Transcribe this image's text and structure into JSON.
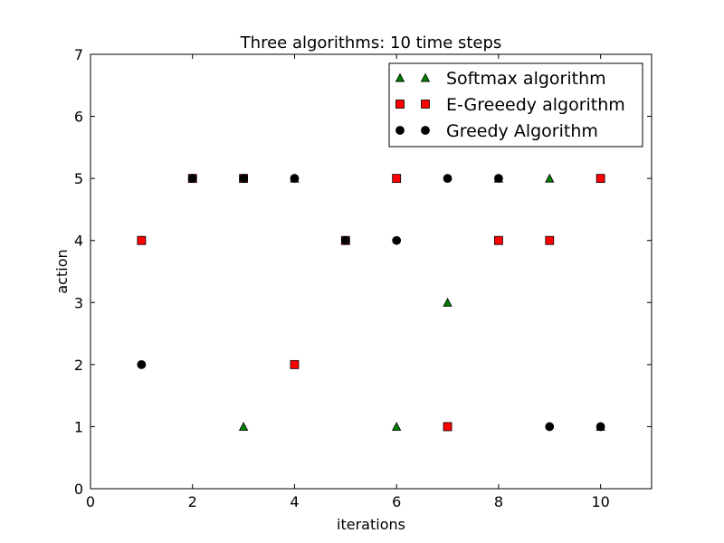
{
  "chart_data": {
    "type": "scatter",
    "title": "Three algorithms: 10 time steps",
    "xlabel": "iterations",
    "ylabel": "action",
    "xlim": [
      0,
      11
    ],
    "ylim": [
      0,
      7
    ],
    "xticks": [
      0,
      2,
      4,
      6,
      8,
      10
    ],
    "yticks": [
      0,
      1,
      2,
      3,
      4,
      5,
      6,
      7
    ],
    "grid": false,
    "legend_position": "top-right",
    "series": [
      {
        "name": "Softmax algorithm",
        "marker": "triangle",
        "color": "#008000",
        "points": [
          [
            1,
            4
          ],
          [
            2,
            5
          ],
          [
            3,
            1
          ],
          [
            4,
            5
          ],
          [
            5,
            4
          ],
          [
            6,
            1
          ],
          [
            7,
            3
          ],
          [
            8,
            5
          ],
          [
            9,
            5
          ],
          [
            10,
            1
          ]
        ]
      },
      {
        "name": "E-Greeedy algorithm",
        "marker": "square",
        "color": "#ff0000",
        "points": [
          [
            1,
            4
          ],
          [
            2,
            5
          ],
          [
            3,
            5
          ],
          [
            4,
            2
          ],
          [
            5,
            4
          ],
          [
            6,
            5
          ],
          [
            7,
            1
          ],
          [
            8,
            4
          ],
          [
            9,
            4
          ],
          [
            10,
            5
          ]
        ]
      },
      {
        "name": "Greedy Algorithm",
        "marker": "circle",
        "color": "#000000",
        "points": [
          [
            1,
            2
          ],
          [
            2,
            5
          ],
          [
            3,
            5
          ],
          [
            4,
            5
          ],
          [
            5,
            4
          ],
          [
            6,
            4
          ],
          [
            7,
            5
          ],
          [
            8,
            5
          ],
          [
            9,
            1
          ],
          [
            10,
            1
          ]
        ]
      }
    ]
  }
}
